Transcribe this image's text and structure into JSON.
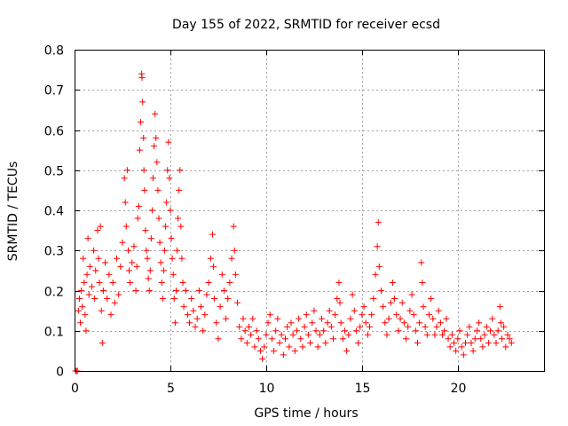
{
  "chart_data": {
    "type": "scatter",
    "title": "Day 155 of 2022, SRMTID for receiver ecsd",
    "xlabel": "GPS time / hours",
    "ylabel": "SRMTID / TECUs",
    "xlim": [
      0,
      24.5
    ],
    "ylim": [
      0,
      0.8
    ],
    "xticks": [
      0,
      5,
      10,
      15,
      20
    ],
    "xtick_labels": [
      "0",
      "5",
      "10",
      "15",
      "20"
    ],
    "yticks": [
      0,
      0.1,
      0.2,
      0.3,
      0.4,
      0.5,
      0.6,
      0.7,
      0.8
    ],
    "ytick_labels": [
      "0",
      "0.1",
      "0.2",
      "0.3",
      "0.4",
      "0.5",
      "0.6",
      "0.7",
      "0.8"
    ],
    "grid": true,
    "marker": "plus",
    "color": "#ff0000",
    "series": [
      {
        "name": "SRMTID",
        "points": [
          [
            0.05,
            0.0
          ],
          [
            0.1,
            0.0
          ],
          [
            0.15,
            0.0
          ],
          [
            0.2,
            0.15
          ],
          [
            0.25,
            0.18
          ],
          [
            0.3,
            0.12
          ],
          [
            0.35,
            0.2
          ],
          [
            0.4,
            0.16
          ],
          [
            0.45,
            0.28
          ],
          [
            0.5,
            0.22
          ],
          [
            0.55,
            0.14
          ],
          [
            0.6,
            0.1
          ],
          [
            0.65,
            0.24
          ],
          [
            0.7,
            0.33
          ],
          [
            0.75,
            0.19
          ],
          [
            0.8,
            0.26
          ],
          [
            0.9,
            0.21
          ],
          [
            1.0,
            0.3
          ],
          [
            1.05,
            0.18
          ],
          [
            1.1,
            0.25
          ],
          [
            1.2,
            0.35
          ],
          [
            1.25,
            0.28
          ],
          [
            1.3,
            0.22
          ],
          [
            1.35,
            0.36
          ],
          [
            1.4,
            0.15
          ],
          [
            1.45,
            0.07
          ],
          [
            1.5,
            0.2
          ],
          [
            1.6,
            0.27
          ],
          [
            1.7,
            0.18
          ],
          [
            1.8,
            0.24
          ],
          [
            1.9,
            0.14
          ],
          [
            2.0,
            0.22
          ],
          [
            2.1,
            0.17
          ],
          [
            2.2,
            0.28
          ],
          [
            2.3,
            0.19
          ],
          [
            2.4,
            0.26
          ],
          [
            2.5,
            0.32
          ],
          [
            2.6,
            0.48
          ],
          [
            2.65,
            0.42
          ],
          [
            2.7,
            0.36
          ],
          [
            2.75,
            0.5
          ],
          [
            2.8,
            0.3
          ],
          [
            2.85,
            0.25
          ],
          [
            2.9,
            0.22
          ],
          [
            3.0,
            0.27
          ],
          [
            3.1,
            0.31
          ],
          [
            3.2,
            0.2
          ],
          [
            3.25,
            0.26
          ],
          [
            3.3,
            0.38
          ],
          [
            3.35,
            0.41
          ],
          [
            3.4,
            0.55
          ],
          [
            3.45,
            0.62
          ],
          [
            3.5,
            0.74
          ],
          [
            3.52,
            0.73
          ],
          [
            3.55,
            0.67
          ],
          [
            3.6,
            0.58
          ],
          [
            3.62,
            0.5
          ],
          [
            3.65,
            0.45
          ],
          [
            3.7,
            0.35
          ],
          [
            3.75,
            0.3
          ],
          [
            3.8,
            0.28
          ],
          [
            3.85,
            0.23
          ],
          [
            3.9,
            0.2
          ],
          [
            3.95,
            0.25
          ],
          [
            4.0,
            0.33
          ],
          [
            4.05,
            0.4
          ],
          [
            4.1,
            0.48
          ],
          [
            4.15,
            0.56
          ],
          [
            4.2,
            0.64
          ],
          [
            4.25,
            0.58
          ],
          [
            4.3,
            0.52
          ],
          [
            4.35,
            0.45
          ],
          [
            4.4,
            0.38
          ],
          [
            4.45,
            0.32
          ],
          [
            4.5,
            0.27
          ],
          [
            4.55,
            0.22
          ],
          [
            4.6,
            0.18
          ],
          [
            4.65,
            0.25
          ],
          [
            4.7,
            0.3
          ],
          [
            4.75,
            0.36
          ],
          [
            4.8,
            0.42
          ],
          [
            4.85,
            0.5
          ],
          [
            4.9,
            0.57
          ],
          [
            4.95,
            0.48
          ],
          [
            5.0,
            0.4
          ],
          [
            5.05,
            0.33
          ],
          [
            5.1,
            0.28
          ],
          [
            5.15,
            0.24
          ],
          [
            5.2,
            0.18
          ],
          [
            5.25,
            0.12
          ],
          [
            5.3,
            0.2
          ],
          [
            5.35,
            0.3
          ],
          [
            5.4,
            0.38
          ],
          [
            5.45,
            0.45
          ],
          [
            5.5,
            0.5
          ],
          [
            5.55,
            0.36
          ],
          [
            5.6,
            0.28
          ],
          [
            5.65,
            0.22
          ],
          [
            5.7,
            0.16
          ],
          [
            5.8,
            0.2
          ],
          [
            5.9,
            0.14
          ],
          [
            6.0,
            0.12
          ],
          [
            6.1,
            0.18
          ],
          [
            6.2,
            0.15
          ],
          [
            6.3,
            0.11
          ],
          [
            6.4,
            0.13
          ],
          [
            6.5,
            0.2
          ],
          [
            6.6,
            0.16
          ],
          [
            6.7,
            0.1
          ],
          [
            6.8,
            0.14
          ],
          [
            6.9,
            0.19
          ],
          [
            7.0,
            0.22
          ],
          [
            7.1,
            0.28
          ],
          [
            7.2,
            0.34
          ],
          [
            7.25,
            0.26
          ],
          [
            7.3,
            0.18
          ],
          [
            7.4,
            0.12
          ],
          [
            7.5,
            0.08
          ],
          [
            7.6,
            0.16
          ],
          [
            7.7,
            0.24
          ],
          [
            7.8,
            0.2
          ],
          [
            7.9,
            0.13
          ],
          [
            8.0,
            0.18
          ],
          [
            8.1,
            0.22
          ],
          [
            8.2,
            0.28
          ],
          [
            8.3,
            0.36
          ],
          [
            8.35,
            0.3
          ],
          [
            8.4,
            0.24
          ],
          [
            8.5,
            0.17
          ],
          [
            8.6,
            0.11
          ],
          [
            8.7,
            0.08
          ],
          [
            8.8,
            0.13
          ],
          [
            8.9,
            0.1
          ],
          [
            9.0,
            0.07
          ],
          [
            9.1,
            0.11
          ],
          [
            9.2,
            0.09
          ],
          [
            9.3,
            0.13
          ],
          [
            9.4,
            0.06
          ],
          [
            9.5,
            0.1
          ],
          [
            9.6,
            0.08
          ],
          [
            9.7,
            0.05
          ],
          [
            9.8,
            0.03
          ],
          [
            9.9,
            0.06
          ],
          [
            10.0,
            0.09
          ],
          [
            10.1,
            0.12
          ],
          [
            10.2,
            0.14
          ],
          [
            10.3,
            0.08
          ],
          [
            10.4,
            0.05
          ],
          [
            10.5,
            0.1
          ],
          [
            10.6,
            0.13
          ],
          [
            10.7,
            0.07
          ],
          [
            10.8,
            0.09
          ],
          [
            10.9,
            0.04
          ],
          [
            11.0,
            0.08
          ],
          [
            11.1,
            0.11
          ],
          [
            11.2,
            0.06
          ],
          [
            11.3,
            0.12
          ],
          [
            11.4,
            0.09
          ],
          [
            11.5,
            0.05
          ],
          [
            11.6,
            0.1
          ],
          [
            11.7,
            0.13
          ],
          [
            11.8,
            0.08
          ],
          [
            11.9,
            0.06
          ],
          [
            12.0,
            0.11
          ],
          [
            12.1,
            0.14
          ],
          [
            12.2,
            0.09
          ],
          [
            12.3,
            0.07
          ],
          [
            12.4,
            0.12
          ],
          [
            12.5,
            0.15
          ],
          [
            12.6,
            0.1
          ],
          [
            12.7,
            0.06
          ],
          [
            12.8,
            0.09
          ],
          [
            12.9,
            0.13
          ],
          [
            13.0,
            0.1
          ],
          [
            13.1,
            0.07
          ],
          [
            13.2,
            0.12
          ],
          [
            13.3,
            0.15
          ],
          [
            13.4,
            0.11
          ],
          [
            13.5,
            0.08
          ],
          [
            13.6,
            0.14
          ],
          [
            13.7,
            0.18
          ],
          [
            13.8,
            0.22
          ],
          [
            13.85,
            0.17
          ],
          [
            13.9,
            0.12
          ],
          [
            14.0,
            0.08
          ],
          [
            14.1,
            0.1
          ],
          [
            14.2,
            0.05
          ],
          [
            14.3,
            0.09
          ],
          [
            14.4,
            0.13
          ],
          [
            14.5,
            0.19
          ],
          [
            14.6,
            0.15
          ],
          [
            14.7,
            0.1
          ],
          [
            14.8,
            0.07
          ],
          [
            14.9,
            0.11
          ],
          [
            15.0,
            0.14
          ],
          [
            15.1,
            0.16
          ],
          [
            15.2,
            0.12
          ],
          [
            15.3,
            0.09
          ],
          [
            15.4,
            0.11
          ],
          [
            15.5,
            0.14
          ],
          [
            15.6,
            0.18
          ],
          [
            15.7,
            0.24
          ],
          [
            15.8,
            0.31
          ],
          [
            15.85,
            0.37
          ],
          [
            15.9,
            0.26
          ],
          [
            16.0,
            0.2
          ],
          [
            16.1,
            0.16
          ],
          [
            16.2,
            0.12
          ],
          [
            16.3,
            0.09
          ],
          [
            16.4,
            0.13
          ],
          [
            16.5,
            0.17
          ],
          [
            16.6,
            0.22
          ],
          [
            16.7,
            0.18
          ],
          [
            16.8,
            0.14
          ],
          [
            16.9,
            0.1
          ],
          [
            17.0,
            0.13
          ],
          [
            17.1,
            0.17
          ],
          [
            17.2,
            0.12
          ],
          [
            17.3,
            0.08
          ],
          [
            17.4,
            0.11
          ],
          [
            17.5,
            0.15
          ],
          [
            17.6,
            0.19
          ],
          [
            17.7,
            0.14
          ],
          [
            17.8,
            0.1
          ],
          [
            17.9,
            0.07
          ],
          [
            18.0,
            0.12
          ],
          [
            18.1,
            0.27
          ],
          [
            18.15,
            0.22
          ],
          [
            18.2,
            0.16
          ],
          [
            18.3,
            0.11
          ],
          [
            18.4,
            0.09
          ],
          [
            18.5,
            0.14
          ],
          [
            18.6,
            0.18
          ],
          [
            18.7,
            0.13
          ],
          [
            18.8,
            0.09
          ],
          [
            18.9,
            0.11
          ],
          [
            19.0,
            0.15
          ],
          [
            19.1,
            0.12
          ],
          [
            19.2,
            0.09
          ],
          [
            19.3,
            0.1
          ],
          [
            19.4,
            0.13
          ],
          [
            19.5,
            0.08
          ],
          [
            19.6,
            0.06
          ],
          [
            19.7,
            0.09
          ],
          [
            19.8,
            0.07
          ],
          [
            19.9,
            0.05
          ],
          [
            20.0,
            0.08
          ],
          [
            20.1,
            0.1
          ],
          [
            20.2,
            0.06
          ],
          [
            20.3,
            0.04
          ],
          [
            20.4,
            0.07
          ],
          [
            20.5,
            0.09
          ],
          [
            20.6,
            0.11
          ],
          [
            20.7,
            0.07
          ],
          [
            20.8,
            0.05
          ],
          [
            20.9,
            0.08
          ],
          [
            21.0,
            0.1
          ],
          [
            21.1,
            0.12
          ],
          [
            21.2,
            0.08
          ],
          [
            21.3,
            0.06
          ],
          [
            21.4,
            0.09
          ],
          [
            21.5,
            0.11
          ],
          [
            21.6,
            0.07
          ],
          [
            21.7,
            0.1
          ],
          [
            21.8,
            0.13
          ],
          [
            21.9,
            0.09
          ],
          [
            22.0,
            0.07
          ],
          [
            22.1,
            0.1
          ],
          [
            22.2,
            0.16
          ],
          [
            22.25,
            0.12
          ],
          [
            22.3,
            0.08
          ],
          [
            22.4,
            0.11
          ],
          [
            22.5,
            0.06
          ],
          [
            22.6,
            0.09
          ],
          [
            22.7,
            0.08
          ],
          [
            22.8,
            0.07
          ]
        ]
      }
    ]
  }
}
